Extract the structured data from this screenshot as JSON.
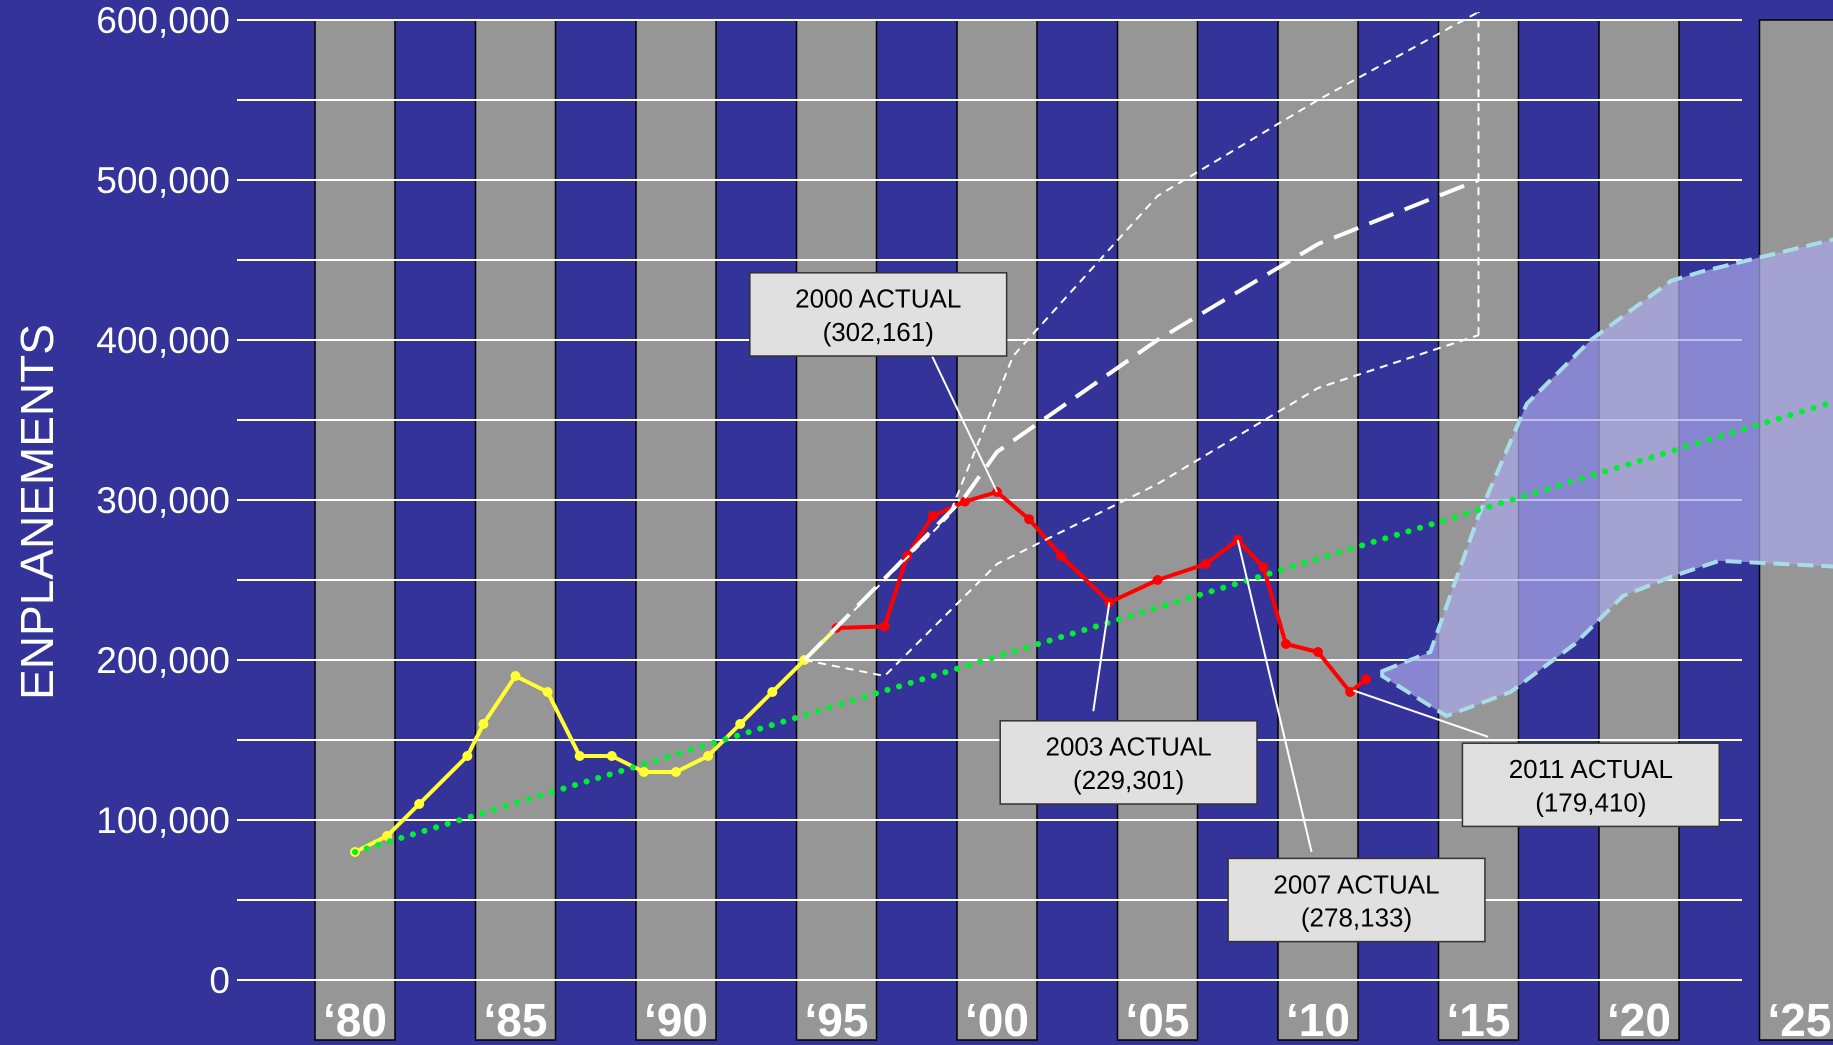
{
  "chart_data": {
    "type": "line",
    "ylabel": "ENPLANEMENTS",
    "xlabel": "",
    "title": "",
    "ylim": [
      0,
      600000
    ],
    "xlim": [
      1979.5,
      2026.5
    ],
    "y_ticks": [
      {
        "value": 0,
        "label": "0"
      },
      {
        "value": 100000,
        "label": "100,000"
      },
      {
        "value": 200000,
        "label": "200,000"
      },
      {
        "value": 300000,
        "label": "300,000"
      },
      {
        "value": 400000,
        "label": "400,000"
      },
      {
        "value": 500000,
        "label": "500,000"
      },
      {
        "value": 600000,
        "label": "600,000"
      }
    ],
    "gridlines_y": [
      0,
      50000,
      100000,
      150000,
      200000,
      250000,
      300000,
      350000,
      400000,
      450000,
      500000,
      550000,
      600000
    ],
    "x_ticks": [
      {
        "value": 1980,
        "label": "‘80"
      },
      {
        "value": 1985,
        "label": "‘85"
      },
      {
        "value": 1990,
        "label": "‘90"
      },
      {
        "value": 1995,
        "label": "‘95"
      },
      {
        "value": 2000,
        "label": "‘00"
      },
      {
        "value": 2005,
        "label": "‘05"
      },
      {
        "value": 2010,
        "label": "‘10"
      },
      {
        "value": 2015,
        "label": "‘15"
      },
      {
        "value": 2020,
        "label": "‘20"
      },
      {
        "value": 2025,
        "label": "‘25"
      }
    ],
    "year_bands": [
      1980,
      1985,
      1990,
      1995,
      2000,
      2005,
      2010,
      2015,
      2020,
      2025
    ],
    "series": [
      {
        "color": "#ffff33",
        "style": "solid-markers",
        "x": [
          1980,
          1981,
          1982,
          1983.5,
          1984,
          1985,
          1986,
          1987,
          1988,
          1989,
          1990,
          1991,
          1992,
          1993,
          1994,
          1995
        ],
        "values": [
          80000,
          90000,
          110000,
          140000,
          160000,
          190000,
          180000,
          140000,
          140000,
          130000,
          130000,
          140000,
          160000,
          180000,
          200000,
          220000
        ]
      },
      {
        "color": "#ff0000",
        "style": "solid-markers",
        "x": [
          1995,
          1996.5,
          1997.2,
          1998,
          1999,
          2000,
          2001,
          2002,
          2003.5,
          2005,
          2006.5,
          2007.5,
          2008.3,
          2009,
          2010,
          2011,
          2011.5
        ],
        "values": [
          220000,
          221000,
          265000,
          290000,
          299000,
          305000,
          288000,
          265000,
          236000,
          250000,
          260000,
          275000,
          258000,
          210000,
          205000,
          180000,
          188000
        ]
      },
      {
        "color": "#00ee33",
        "style": "dotted",
        "x": [
          1980,
          2026.5
        ],
        "values": [
          80000,
          364000
        ]
      },
      {
        "color": "#ffffff",
        "style": "short-dash",
        "x": [
          1994,
          1998.5,
          2000.5,
          2005,
          2010,
          2015
        ],
        "values": [
          200000,
          290000,
          390000,
          490000,
          550000,
          605000
        ]
      },
      {
        "color": "#ffffff",
        "style": "long-dash",
        "x": [
          1994,
          1999,
          2000,
          2005,
          2010,
          2015
        ],
        "values": [
          200000,
          302000,
          330000,
          400000,
          460000,
          500000
        ]
      },
      {
        "color": "#ffffff",
        "style": "short-dash",
        "x": [
          1994,
          1996.5,
          2000,
          2005,
          2010,
          2015
        ],
        "values": [
          200000,
          190000,
          260000,
          310000,
          370000,
          403000
        ]
      }
    ],
    "vertical_dash": {
      "x": 2015,
      "from": 403000,
      "to": 605000
    },
    "forecast_band": {
      "upper": {
        "x": [
          2012,
          2013.5,
          2015,
          2016.5,
          2018.5,
          2021,
          2022,
          2026.5
        ],
        "values": [
          193000,
          205000,
          290000,
          360000,
          400000,
          437000,
          443000,
          465000
        ]
      },
      "lower": {
        "x": [
          2026.5,
          2022.5,
          2021,
          2019.5,
          2018,
          2016,
          2014,
          2012
        ],
        "values": [
          258000,
          262000,
          252000,
          240000,
          210000,
          180000,
          165000,
          190000
        ]
      },
      "fill": "#a9a6e6",
      "stroke": "#a8dde8"
    },
    "annotations": [
      {
        "line1": "2000 ACTUAL",
        "line2": "(302,161)",
        "box": {
          "x": 1996.3,
          "y": 416000,
          "w": 8.0,
          "h": 52000
        },
        "target": {
          "x": 2000,
          "y": 305000
        },
        "anchor": {
          "x": 1997.5,
          "y": 410000
        }
      },
      {
        "line1": "2003 ACTUAL",
        "line2": "(229,301)",
        "box": {
          "x": 2004.1,
          "y": 136000,
          "w": 8.0,
          "h": 52000
        },
        "target": {
          "x": 2003.5,
          "y": 236000
        },
        "anchor": {
          "x": 2003.0,
          "y": 168000
        }
      },
      {
        "line1": "2007 ACTUAL",
        "line2": "(278,133)",
        "box": {
          "x": 2011.2,
          "y": 50000,
          "w": 8.0,
          "h": 52000
        },
        "target": {
          "x": 2007.5,
          "y": 275000
        },
        "anchor": {
          "x": 2009.8,
          "y": 80000
        }
      },
      {
        "line1": "2011 ACTUAL",
        "line2": "(179,410)",
        "box": {
          "x": 2018.5,
          "y": 122000,
          "w": 8.0,
          "h": 52000
        },
        "target": {
          "x": 2011.1,
          "y": 181000
        },
        "anchor": {
          "x": 2015.3,
          "y": 152000
        }
      }
    ],
    "colors": {
      "background": "#333399",
      "band": "#969696",
      "grid": "#ffffff",
      "callout_fill": "#e0e0e0"
    },
    "grid": true
  }
}
